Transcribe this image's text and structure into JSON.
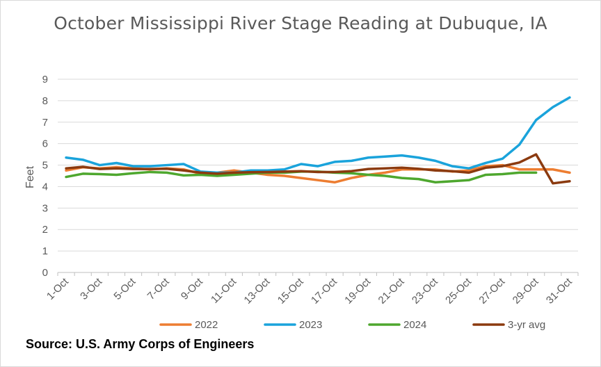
{
  "chart_data": {
    "type": "line",
    "title": "October Mississippi River Stage Reading at Dubuque, IA",
    "xlabel": "",
    "ylabel": "Feet",
    "ylim": [
      0,
      9
    ],
    "yticks": [
      0,
      1,
      2,
      3,
      4,
      5,
      6,
      7,
      8,
      9
    ],
    "grid": true,
    "legend_position": "bottom",
    "x": [
      "1-Oct",
      "2-Oct",
      "3-Oct",
      "4-Oct",
      "5-Oct",
      "6-Oct",
      "7-Oct",
      "8-Oct",
      "9-Oct",
      "10-Oct",
      "11-Oct",
      "12-Oct",
      "13-Oct",
      "14-Oct",
      "15-Oct",
      "16-Oct",
      "17-Oct",
      "18-Oct",
      "19-Oct",
      "20-Oct",
      "21-Oct",
      "22-Oct",
      "23-Oct",
      "24-Oct",
      "25-Oct",
      "26-Oct",
      "27-Oct",
      "28-Oct",
      "29-Oct",
      "30-Oct",
      "31-Oct"
    ],
    "xtick_labels": [
      "1-Oct",
      "3-Oct",
      "5-Oct",
      "7-Oct",
      "9-Oct",
      "11-Oct",
      "13-Oct",
      "15-Oct",
      "17-Oct",
      "19-Oct",
      "21-Oct",
      "23-Oct",
      "25-Oct",
      "27-Oct",
      "29-Oct",
      "31-Oct"
    ],
    "series": [
      {
        "name": "2022",
        "color": "#ED7D31",
        "values": [
          4.75,
          4.9,
          4.85,
          4.9,
          4.85,
          4.8,
          4.85,
          4.8,
          4.6,
          4.65,
          4.75,
          4.65,
          4.55,
          4.5,
          4.4,
          4.3,
          4.2,
          4.4,
          4.55,
          4.65,
          4.8,
          4.8,
          4.8,
          4.7,
          4.75,
          4.95,
          5.0,
          4.8,
          4.8,
          4.8,
          4.65
        ]
      },
      {
        "name": "2023",
        "color": "#1AA3DB",
        "values": [
          5.35,
          5.25,
          5.0,
          5.1,
          4.95,
          4.95,
          5.0,
          5.05,
          4.7,
          4.65,
          4.65,
          4.75,
          4.75,
          4.8,
          5.05,
          4.95,
          5.15,
          5.2,
          5.35,
          5.4,
          5.45,
          5.35,
          5.2,
          4.95,
          4.85,
          5.1,
          5.3,
          5.95,
          7.1,
          7.7,
          8.15
        ]
      },
      {
        "name": "2024",
        "color": "#4EA72E",
        "values": [
          4.45,
          4.6,
          4.58,
          4.55,
          4.62,
          4.68,
          4.65,
          4.52,
          4.55,
          4.5,
          4.55,
          4.6,
          4.65,
          4.65,
          4.7,
          4.7,
          4.65,
          4.62,
          4.55,
          4.5,
          4.4,
          4.35,
          4.2,
          4.25,
          4.3,
          4.55,
          4.58,
          4.65,
          4.65,
          null,
          null
        ]
      },
      {
        "name": "3-yr avg",
        "color": "#8B3A0F",
        "values": [
          4.85,
          4.92,
          4.82,
          4.85,
          4.82,
          4.82,
          4.83,
          4.75,
          4.65,
          4.6,
          4.65,
          4.67,
          4.68,
          4.7,
          4.72,
          4.68,
          4.68,
          4.72,
          4.82,
          4.85,
          4.88,
          4.83,
          4.75,
          4.72,
          4.65,
          4.88,
          4.95,
          5.12,
          5.5,
          4.15,
          4.25
        ]
      }
    ],
    "source": "Source: U.S. Army Corps of Engineers"
  }
}
